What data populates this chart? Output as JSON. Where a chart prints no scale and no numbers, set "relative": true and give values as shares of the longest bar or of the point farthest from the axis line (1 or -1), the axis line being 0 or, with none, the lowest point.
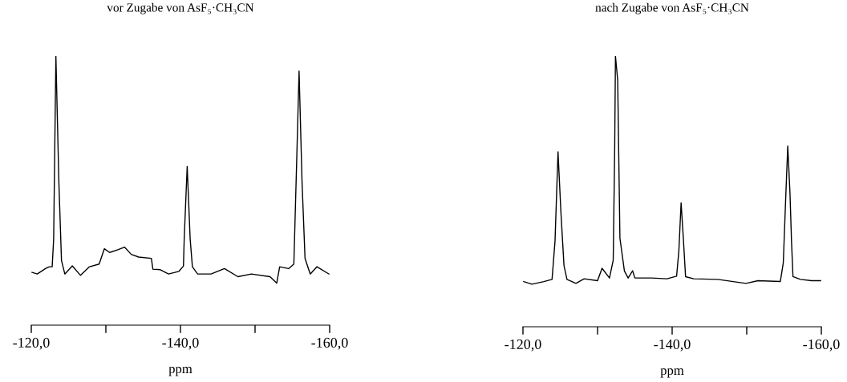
{
  "chart_data": [
    {
      "type": "line",
      "title": "vor Zugabe von AsF₅·CH₃CN",
      "xlabel": "ppm",
      "relative": true,
      "grid": false,
      "legend": false,
      "color": "#000000",
      "x": [
        -120.1,
        -120.8,
        -121.9,
        -122.4,
        -122.8,
        -123.0,
        -123.3,
        -123.7,
        -124.05,
        -124.5,
        -125.5,
        -126.6,
        -127.8,
        -129.1,
        -129.8,
        -130.5,
        -131.6,
        -132.5,
        -133.4,
        -134.4,
        -136.1,
        -136.3,
        -137.3,
        -138.4,
        -139.8,
        -140.4,
        -140.5,
        -140.9,
        -141.3,
        -141.6,
        -142.3,
        -144.1,
        -145.9,
        -147.7,
        -149.5,
        -152.0,
        -152.9,
        -153.3,
        -154.5,
        -155.2,
        -155.6,
        -155.9,
        -156.3,
        -156.7,
        -157.4,
        -158.3,
        -159.9
      ],
      "values": [
        0.196,
        0.19,
        0.21,
        0.217,
        0.217,
        0.32,
        1.0,
        0.53,
        0.24,
        0.19,
        0.22,
        0.185,
        0.217,
        0.227,
        0.284,
        0.27,
        0.28,
        0.29,
        0.263,
        0.253,
        0.248,
        0.208,
        0.206,
        0.19,
        0.2,
        0.22,
        0.32,
        0.59,
        0.32,
        0.217,
        0.19,
        0.19,
        0.21,
        0.18,
        0.19,
        0.18,
        0.156,
        0.217,
        0.21,
        0.227,
        0.63,
        0.944,
        0.53,
        0.248,
        0.19,
        0.217,
        0.19
      ],
      "xlim": [
        -120,
        -160
      ],
      "xticks": [
        {
          "value": -120,
          "label": "-120,0"
        },
        {
          "value": -130,
          "label": null
        },
        {
          "value": -140,
          "label": "-140,0"
        },
        {
          "value": -150,
          "label": null
        },
        {
          "value": -160,
          "label": "-160,0"
        }
      ]
    },
    {
      "type": "line",
      "title": "nach Zugabe von AsF₅·CH₃CN",
      "xlabel": "ppm",
      "relative": true,
      "grid": false,
      "legend": false,
      "color": "#000000",
      "x": [
        -120.1,
        -121.2,
        -122.8,
        -123.9,
        -124.3,
        -124.7,
        -125.1,
        -125.5,
        -125.9,
        -127.1,
        -128.2,
        -130.0,
        -130.6,
        -131.6,
        -132.1,
        -132.3,
        -132.4,
        -132.7,
        -133.0,
        -133.6,
        -134.1,
        -134.7,
        -135.0,
        -137.2,
        -139.3,
        -140.6,
        -140.9,
        -141.2,
        -141.5,
        -141.8,
        -142.9,
        -146.1,
        -149.9,
        -151.5,
        -154.5,
        -154.9,
        -155.2,
        -155.5,
        -155.8,
        -156.0,
        -156.2,
        -157.2,
        -158.7,
        -159.9
      ],
      "values": [
        0.167,
        0.157,
        0.167,
        0.175,
        0.317,
        0.646,
        0.417,
        0.226,
        0.175,
        0.16,
        0.177,
        0.17,
        0.216,
        0.18,
        0.246,
        0.663,
        1.0,
        0.911,
        0.327,
        0.206,
        0.18,
        0.207,
        0.18,
        0.18,
        0.177,
        0.187,
        0.28,
        0.458,
        0.327,
        0.185,
        0.177,
        0.175,
        0.16,
        0.17,
        0.167,
        0.236,
        0.458,
        0.668,
        0.492,
        0.317,
        0.185,
        0.175,
        0.17,
        0.17
      ],
      "xlim": [
        -120,
        -160
      ],
      "xticks": [
        {
          "value": -120,
          "label": "-120,0"
        },
        {
          "value": -130,
          "label": null
        },
        {
          "value": -140,
          "label": "-140,0"
        },
        {
          "value": -150,
          "label": null
        },
        {
          "value": -160,
          "label": "-160,0"
        }
      ]
    }
  ]
}
